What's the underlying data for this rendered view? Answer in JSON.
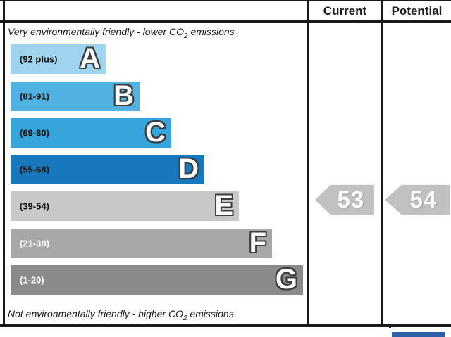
{
  "header": {
    "current_label": "Current",
    "potential_label": "Potential"
  },
  "top_note": {
    "prefix": "Very environmentally friendly - lower CO",
    "sub": "2",
    "suffix": " emissions"
  },
  "bottom_note": {
    "prefix": "Not environmentally friendly - higher CO",
    "sub": "2",
    "suffix": " emissions"
  },
  "bands": [
    {
      "letter": "A",
      "range": "(92 plus)",
      "color": "#9fd3ee"
    },
    {
      "letter": "B",
      "range": "(81-91)",
      "color": "#51b1e2"
    },
    {
      "letter": "C",
      "range": "(69-80)",
      "color": "#36a5dc"
    },
    {
      "letter": "D",
      "range": "(55-68)",
      "color": "#1878bd"
    },
    {
      "letter": "E",
      "range": "(39-54)",
      "color": "#c8c8c8"
    },
    {
      "letter": "F",
      "range": "(21-38)",
      "color": "#a7a7a7"
    },
    {
      "letter": "G",
      "range": "(1-20)",
      "color": "#8a8a8a"
    }
  ],
  "ratings": {
    "current": {
      "value": "53",
      "arrow_color": "#c1c1c1"
    },
    "potential": {
      "value": "54",
      "arrow_color": "#c1c1c1"
    }
  },
  "colors": {
    "border": "#1a1a1a",
    "partial_logo_blue": "#2b5fa8"
  },
  "chart_data": {
    "type": "bar",
    "categories": [
      "A",
      "B",
      "C",
      "D",
      "E",
      "F",
      "G"
    ],
    "ranges": [
      "(92 plus)",
      "(81-91)",
      "(69-80)",
      "(55-68)",
      "(39-54)",
      "(21-38)",
      "(1-20)"
    ],
    "bar_colors": [
      "#9fd3ee",
      "#51b1e2",
      "#36a5dc",
      "#1878bd",
      "#c8c8c8",
      "#a7a7a7",
      "#8a8a8a"
    ],
    "bar_relative_lengths": [
      135,
      183,
      228,
      275,
      324,
      371,
      415
    ],
    "columns": [
      "Current",
      "Potential"
    ],
    "current": 53,
    "potential": 54,
    "current_band": "E",
    "potential_band": "E",
    "top_note": "Very environmentally friendly - lower CO2 emissions",
    "bottom_note": "Not environmentally friendly - higher CO2 emissions",
    "legend_position": "none",
    "grid": false
  }
}
